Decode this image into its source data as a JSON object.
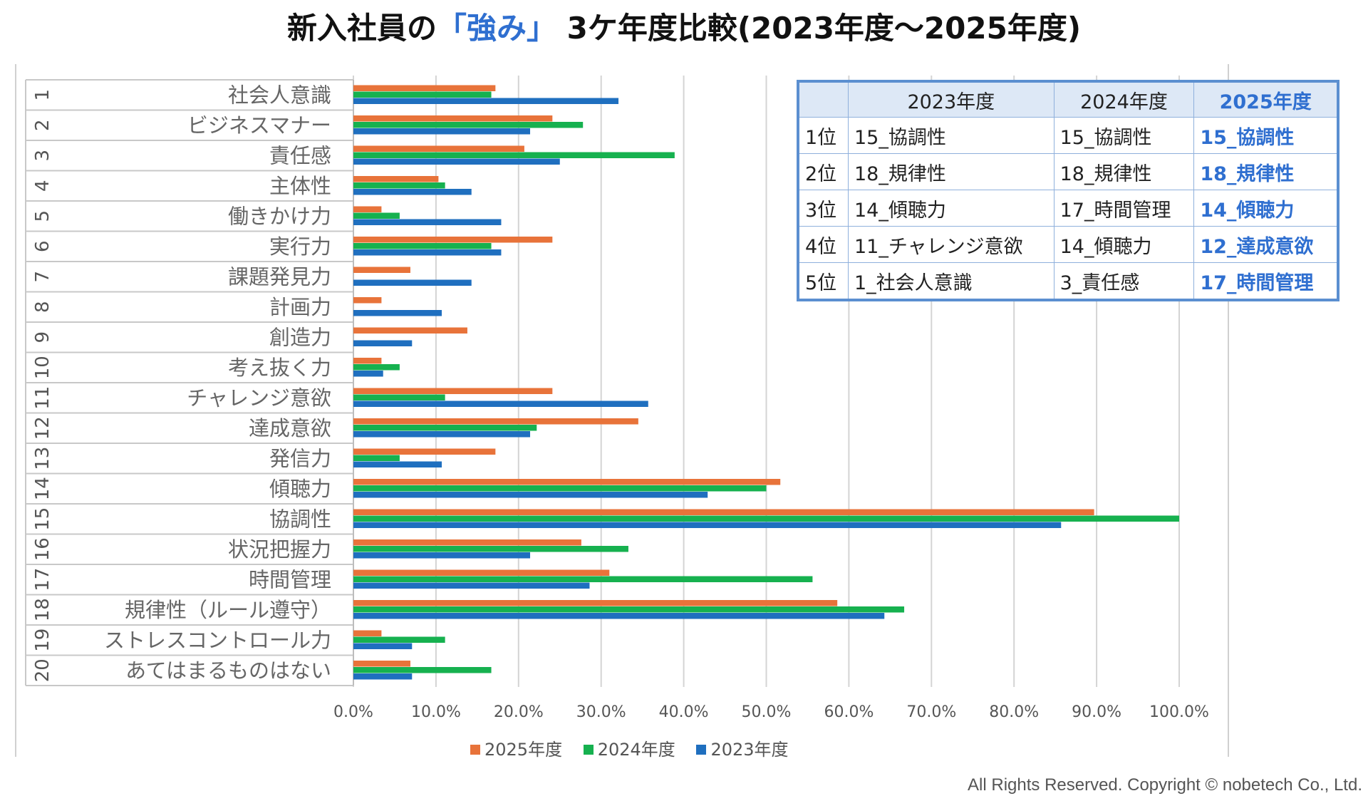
{
  "title": {
    "prefix": "新入社員の",
    "highlight": "「強み」",
    "suffix": " 3ケ年度比較(2023年度～2025年度)"
  },
  "colors": {
    "series_2025": "#e8733a",
    "series_2024": "#16b14f",
    "series_2023": "#1f6fbf",
    "accent": "#2f6fd0"
  },
  "chart_data": {
    "type": "bar",
    "orientation": "horizontal",
    "categories": [
      {
        "no": "1",
        "label": "社会人意識"
      },
      {
        "no": "2",
        "label": "ビジネスマナー"
      },
      {
        "no": "3",
        "label": "責任感"
      },
      {
        "no": "4",
        "label": "主体性"
      },
      {
        "no": "5",
        "label": "働きかけ力"
      },
      {
        "no": "6",
        "label": "実行力"
      },
      {
        "no": "7",
        "label": "課題発見力"
      },
      {
        "no": "8",
        "label": "計画力"
      },
      {
        "no": "9",
        "label": "創造力"
      },
      {
        "no": "10",
        "label": "考え抜く力"
      },
      {
        "no": "11",
        "label": "チャレンジ意欲"
      },
      {
        "no": "12",
        "label": "達成意欲"
      },
      {
        "no": "13",
        "label": "発信力"
      },
      {
        "no": "14",
        "label": "傾聴力"
      },
      {
        "no": "15",
        "label": "協調性"
      },
      {
        "no": "16",
        "label": "状況把握力"
      },
      {
        "no": "17",
        "label": "時間管理"
      },
      {
        "no": "18",
        "label": "規律性（ルール遵守）"
      },
      {
        "no": "19",
        "label": "ストレスコントロール力"
      },
      {
        "no": "20",
        "label": "あてはまるものはない"
      }
    ],
    "series": [
      {
        "name": "2025年度",
        "color": "#e8733a",
        "values": [
          17.2,
          24.1,
          20.7,
          10.3,
          3.4,
          24.1,
          6.9,
          3.4,
          13.8,
          3.4,
          24.1,
          34.5,
          17.2,
          51.7,
          89.7,
          27.6,
          31.0,
          58.6,
          3.4,
          6.9
        ]
      },
      {
        "name": "2024年度",
        "color": "#16b14f",
        "values": [
          16.7,
          27.8,
          38.9,
          11.1,
          5.6,
          16.7,
          0,
          0,
          0,
          5.6,
          11.1,
          22.2,
          5.6,
          50.0,
          100.0,
          33.3,
          55.6,
          66.7,
          11.1,
          16.7
        ]
      },
      {
        "name": "2023年度",
        "color": "#1f6fbf",
        "values": [
          32.1,
          21.4,
          25.0,
          14.3,
          17.9,
          17.9,
          14.3,
          10.7,
          7.1,
          3.6,
          35.7,
          21.4,
          10.7,
          42.9,
          85.7,
          21.4,
          28.6,
          64.3,
          7.1,
          7.1
        ]
      }
    ],
    "xlim": [
      0,
      100
    ],
    "xticks": [
      "0.0%",
      "10.0%",
      "20.0%",
      "30.0%",
      "40.0%",
      "50.0%",
      "60.0%",
      "70.0%",
      "80.0%",
      "90.0%",
      "100.0%"
    ],
    "grid": true,
    "legend_position": "bottom",
    "legend": [
      "2025年度",
      "2024年度",
      "2023年度"
    ]
  },
  "ranking_table": {
    "headers": [
      "2023年度",
      "2024年度",
      "2025年度"
    ],
    "rows": [
      {
        "rank": "1位",
        "y2023": "15_協調性",
        "y2024": "15_協調性",
        "y2025": "15_協調性"
      },
      {
        "rank": "2位",
        "y2023": "18_規律性",
        "y2024": "18_規律性",
        "y2025": "18_規律性"
      },
      {
        "rank": "3位",
        "y2023": "14_傾聴力",
        "y2024": "17_時間管理",
        "y2025": "14_傾聴力"
      },
      {
        "rank": "4位",
        "y2023": "11_チャレンジ意欲",
        "y2024": "14_傾聴力",
        "y2025": "12_達成意欲"
      },
      {
        "rank": "5位",
        "y2023": "1_社会人意識",
        "y2024": "3_責任感",
        "y2025": "17_時間管理"
      }
    ]
  },
  "copyright": "All Rights Reserved. Copyright © nobetech Co., Ltd."
}
